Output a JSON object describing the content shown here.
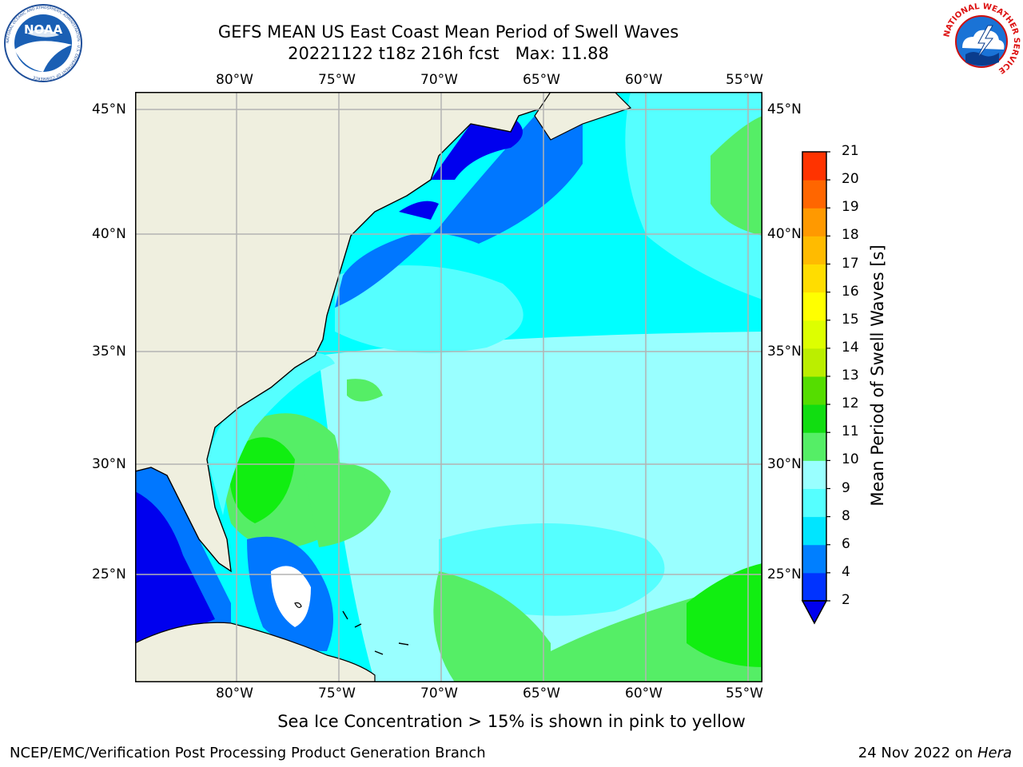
{
  "title": {
    "line1": "GEFS MEAN US East Coast Mean Period of Swell Waves",
    "line2": "20221122 t18z 216h fcst   Max: 11.88"
  },
  "logos": {
    "left": "NOAA",
    "left_ring": "NATIONAL OCEANIC AND ATMOSPHERIC ADMINISTRATION · U.S. DEPARTMENT OF COMMERCE",
    "right_ring": "NATIONAL WEATHER SERVICE"
  },
  "map": {
    "lon_labels": [
      "80°W",
      "75°W",
      "70°W",
      "65°W",
      "60°W",
      "55°W"
    ],
    "lat_labels": [
      "45°N",
      "40°N",
      "35°N",
      "30°N",
      "25°N"
    ],
    "extent": {
      "lon_min": -85,
      "lon_max": -54.3,
      "lat_min": 20.5,
      "lat_max": 45.8
    }
  },
  "colorbar": {
    "label": "Mean Period of Swell Waves [s]",
    "ticks": [
      "2",
      "4",
      "6",
      "8",
      "9",
      "10",
      "11",
      "12",
      "13",
      "14",
      "15",
      "16",
      "17",
      "18",
      "19",
      "20",
      "21"
    ],
    "colors": [
      "#0033ff",
      "#007fff",
      "#00e5ff",
      "#55ffff",
      "#99ffff",
      "#55ee66",
      "#11dd11",
      "#55dd00",
      "#bbee00",
      "#ddff00",
      "#ffff00",
      "#ffdd00",
      "#ffbb00",
      "#ff9900",
      "#ff6600",
      "#ff3300"
    ],
    "extend_color": "#0000ee"
  },
  "colors": {
    "land": "#efefdf",
    "deep_blue": "#0000ee",
    "blue": "#0077ff",
    "cyan": "#00ffff",
    "light_cyan": "#55ffff",
    "pale_cyan": "#99ffff",
    "green": "#55ee66",
    "bright_green": "#11ee11"
  },
  "footer": {
    "note": "Sea Ice Concentration > 15% is shown in pink to yellow",
    "left": "NCEP/EMC/Verification Post Processing Product Generation Branch",
    "date": "24 Nov 2022 on ",
    "machine": "Hera"
  }
}
